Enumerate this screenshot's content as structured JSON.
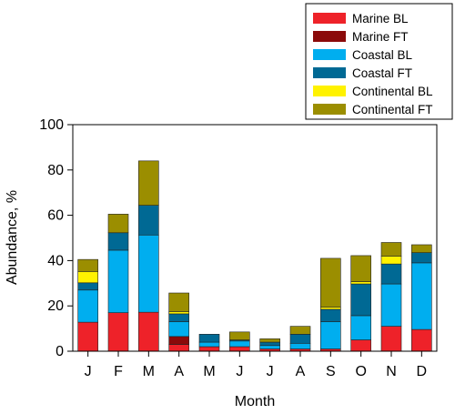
{
  "chart_data": {
    "type": "bar",
    "stacked": true,
    "xlabel": "Month",
    "ylabel": "Abundance, %",
    "ylim": [
      0,
      100
    ],
    "yticks": [
      0,
      20,
      40,
      60,
      80,
      100
    ],
    "grid": false,
    "legend_position": "top-right",
    "categories": [
      "J",
      "F",
      "M",
      "A",
      "M",
      "J",
      "J",
      "A",
      "S",
      "O",
      "N",
      "D"
    ],
    "series": [
      {
        "name": "Marine BL",
        "color": "#ee2229",
        "values": [
          12.8,
          17.0,
          17.2,
          3.0,
          2.0,
          2.0,
          1.0,
          1.0,
          1.0,
          5.0,
          11.0,
          9.6
        ]
      },
      {
        "name": "Marine FT",
        "color": "#8b0a0a",
        "values": [
          0,
          0,
          0,
          3.5,
          0,
          0,
          0,
          0,
          0,
          0,
          0,
          0
        ]
      },
      {
        "name": "Coastal BL",
        "color": "#00aeef",
        "values": [
          14.2,
          27.6,
          34.1,
          6.5,
          2.0,
          2.5,
          1.5,
          2.5,
          12.0,
          10.7,
          18.7,
          29.4
        ]
      },
      {
        "name": "Coastal FT",
        "color": "#006994",
        "values": [
          3.2,
          7.7,
          13.1,
          3.5,
          3.5,
          0.5,
          1.5,
          4.0,
          5.5,
          14.0,
          8.8,
          4.5
        ]
      },
      {
        "name": "Continental BL",
        "color": "#fff200",
        "values": [
          5.0,
          0,
          0,
          1.0,
          0,
          0,
          0,
          0,
          1.0,
          1.0,
          3.5,
          0
        ]
      },
      {
        "name": "Continental FT",
        "color": "#9b8e00",
        "values": [
          5.3,
          8.2,
          19.6,
          8.2,
          0,
          3.5,
          1.5,
          3.5,
          21.5,
          11.5,
          6.0,
          3.5
        ]
      }
    ]
  }
}
